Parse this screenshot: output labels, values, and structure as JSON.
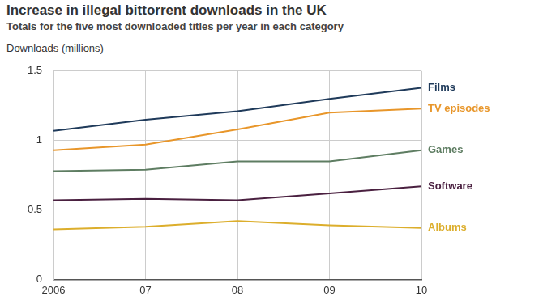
{
  "chart_data": {
    "type": "line",
    "title": "Increase in illegal bittorrent downloads in the UK",
    "subtitle": "Totals for the five most downloaded titles per year in each category",
    "y_label": "Downloads (millions)",
    "categories": [
      "2006",
      "07",
      "08",
      "09",
      "10"
    ],
    "series": [
      {
        "name": "Films",
        "color": "#1f3a5a",
        "values": [
          1.07,
          1.15,
          1.21,
          1.3,
          1.38
        ]
      },
      {
        "name": "TV episodes",
        "color": "#e8962a",
        "values": [
          0.93,
          0.97,
          1.08,
          1.2,
          1.23
        ]
      },
      {
        "name": "Games",
        "color": "#5e7d62",
        "values": [
          0.78,
          0.79,
          0.85,
          0.85,
          0.93
        ]
      },
      {
        "name": "Software",
        "color": "#4a2040",
        "values": [
          0.57,
          0.58,
          0.57,
          0.62,
          0.67
        ]
      },
      {
        "name": "Albums",
        "color": "#dcae2c",
        "values": [
          0.36,
          0.38,
          0.42,
          0.39,
          0.37
        ]
      }
    ],
    "ylim": [
      0,
      1.5
    ],
    "yticks": [
      0,
      0.5,
      1,
      1.5
    ],
    "grid": true
  }
}
